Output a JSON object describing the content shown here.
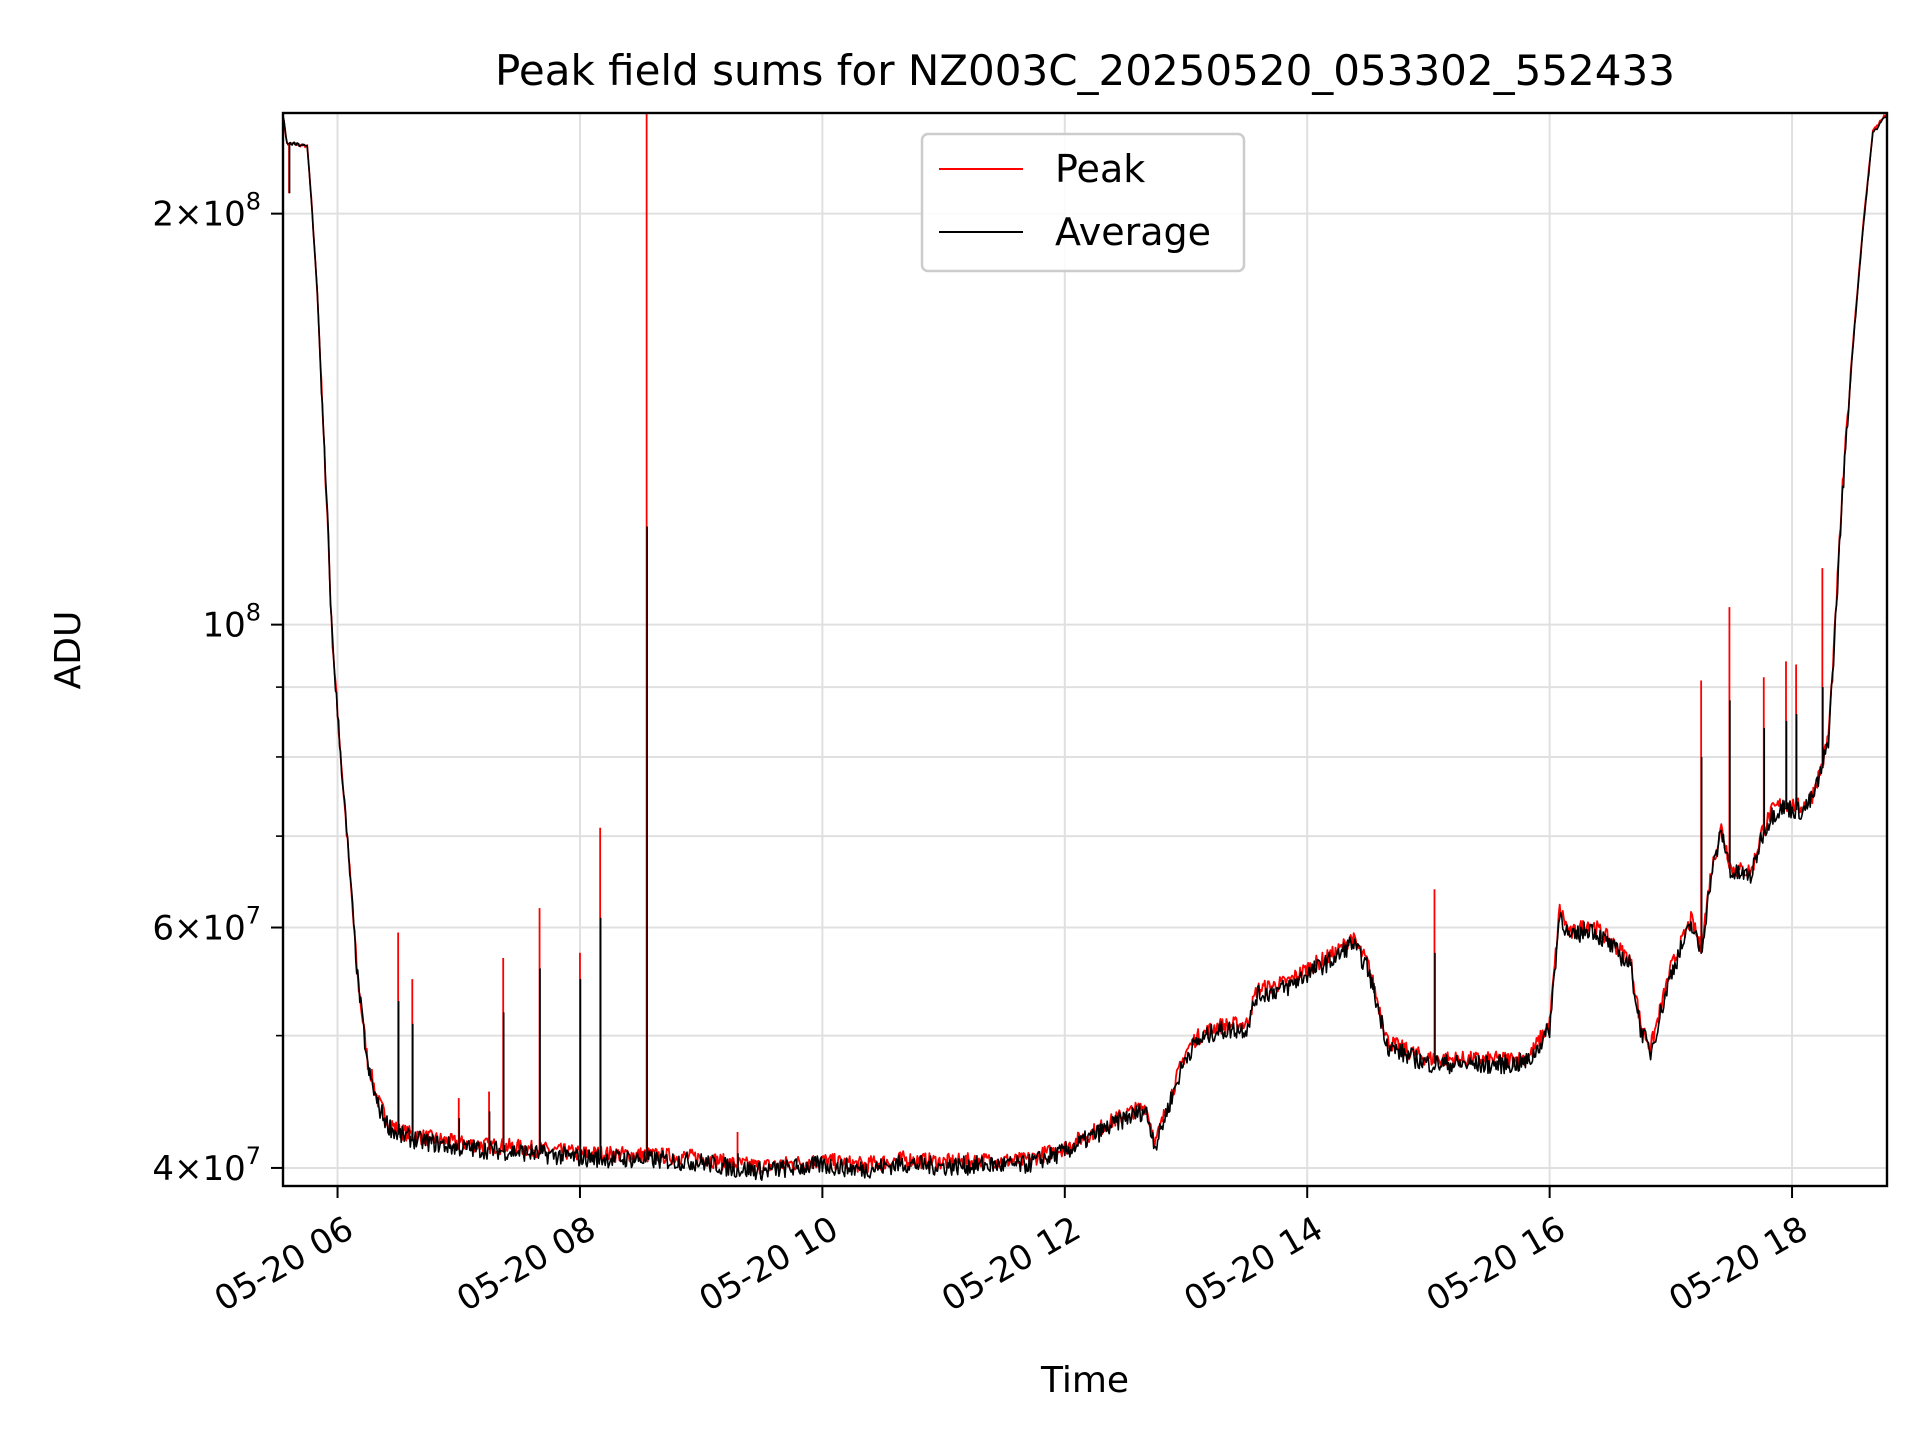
{
  "chart_data": {
    "type": "line",
    "title": "Peak field sums for NZ003C_20250520_053302_552433",
    "xlabel": "Time",
    "ylabel": "ADU",
    "xlim": [
      "2025-05-20 05:33",
      "2025-05-20 18:47"
    ],
    "ylim": [
      38800000,
      237000000
    ],
    "yscale": "log",
    "grid": true,
    "legend": "upper center",
    "x_ticks": [
      {
        "hour": 6,
        "label": "05-20 06"
      },
      {
        "hour": 8,
        "label": "05-20 08"
      },
      {
        "hour": 10,
        "label": "05-20 10"
      },
      {
        "hour": 12,
        "label": "05-20 12"
      },
      {
        "hour": 14,
        "label": "05-20 14"
      },
      {
        "hour": 16,
        "label": "05-20 16"
      },
      {
        "hour": 18,
        "label": "05-20 18"
      }
    ],
    "y_ticks": [
      {
        "value": 40000000,
        "base": "4×10",
        "exp": "7"
      },
      {
        "value": 60000000,
        "base": "6×10",
        "exp": "7"
      },
      {
        "value": 100000000,
        "base": "10",
        "exp": "8"
      },
      {
        "value": 200000000,
        "base": "2×10",
        "exp": "8"
      }
    ],
    "y_minor": [
      50000000,
      70000000,
      80000000,
      90000000
    ],
    "series": [
      {
        "name": "Peak",
        "color": "#ff0000",
        "x": [
          "05:33",
          "05:35",
          "05:36",
          "05:38",
          "05:45",
          "05:47",
          "05:50",
          "05:53",
          "05:55",
          "05:57",
          "06:00",
          "06:05",
          "06:10",
          "06:15",
          "06:20",
          "06:25",
          "06:30",
          "06:40",
          "07:00",
          "07:30",
          "08:00",
          "08:30",
          "09:00",
          "09:15",
          "09:30",
          "10:00",
          "10:20",
          "10:40",
          "11:00",
          "11:20",
          "11:40",
          "12:00",
          "12:15",
          "12:30",
          "12:40",
          "12:45",
          "12:50",
          "13:00",
          "13:05",
          "13:15",
          "13:30",
          "13:35",
          "13:50",
          "14:00",
          "14:15",
          "14:22",
          "14:30",
          "14:40",
          "14:50",
          "15:00",
          "15:30",
          "15:45",
          "15:50",
          "16:00",
          "16:05",
          "16:10",
          "16:20",
          "16:30",
          "16:40",
          "16:45",
          "16:50",
          "17:00",
          "17:10",
          "17:15",
          "17:20",
          "17:25",
          "17:30",
          "17:40",
          "17:45",
          "17:50",
          "17:55",
          "18:05",
          "18:10",
          "18:15",
          "18:18",
          "18:20",
          "18:25",
          "18:30",
          "18:35",
          "18:40",
          "18:47"
        ],
        "y": [
          236000000,
          225000000,
          225000000,
          225000000,
          224000000,
          205000000,
          175000000,
          138000000,
          120000000,
          100000000,
          86000000,
          69000000,
          55000000,
          47800000,
          44800000,
          43300000,
          42600000,
          42200000,
          41700000,
          41400000,
          41000000,
          40900000,
          40700000,
          40300000,
          40100000,
          40500000,
          40200000,
          40600000,
          40400000,
          40500000,
          40500000,
          41400000,
          42600000,
          43800000,
          44400000,
          41800000,
          44100000,
          48700000,
          49800000,
          50800000,
          51000000,
          54000000,
          54700000,
          56000000,
          57600000,
          59000000,
          56500000,
          49500000,
          48700000,
          48100000,
          48000000,
          48100000,
          48300000,
          51000000,
          62000000,
          59300000,
          60500000,
          58700000,
          56800000,
          51000000,
          49000000,
          56000000,
          60800000,
          58000000,
          66000000,
          71000000,
          66200000,
          66000000,
          70500000,
          73000000,
          74000000,
          73500000,
          75000000,
          79000000,
          83000000,
          92000000,
          126000000,
          160000000,
          195000000,
          230000000,
          237000000
        ]
      },
      {
        "name": "Average",
        "color": "#000000",
        "x": [
          "05:33",
          "05:35",
          "05:36",
          "05:38",
          "05:45",
          "05:47",
          "05:50",
          "05:53",
          "05:55",
          "05:57",
          "06:00",
          "06:05",
          "06:10",
          "06:15",
          "06:20",
          "06:25",
          "06:30",
          "06:40",
          "07:00",
          "07:30",
          "08:00",
          "08:30",
          "09:00",
          "09:15",
          "09:30",
          "10:00",
          "10:20",
          "10:40",
          "11:00",
          "11:20",
          "11:40",
          "12:00",
          "12:15",
          "12:30",
          "12:40",
          "12:45",
          "12:50",
          "13:00",
          "13:05",
          "13:15",
          "13:30",
          "13:35",
          "13:50",
          "14:00",
          "14:15",
          "14:22",
          "14:30",
          "14:40",
          "14:50",
          "15:00",
          "15:30",
          "15:45",
          "15:50",
          "16:00",
          "16:05",
          "16:10",
          "16:20",
          "16:30",
          "16:40",
          "16:45",
          "16:50",
          "17:00",
          "17:10",
          "17:15",
          "17:20",
          "17:25",
          "17:30",
          "17:40",
          "17:45",
          "17:50",
          "17:55",
          "18:05",
          "18:10",
          "18:15",
          "18:18",
          "18:20",
          "18:25",
          "18:30",
          "18:35",
          "18:40",
          "18:47"
        ],
        "y": [
          236000000,
          225000000,
          225000000,
          225000000,
          224000000,
          205000000,
          175000000,
          138000000,
          120000000,
          100000000,
          86000000,
          69000000,
          55000000,
          47300000,
          44400000,
          43000000,
          42300000,
          41900000,
          41400000,
          41100000,
          40700000,
          40600000,
          40400000,
          40000000,
          39800000,
          40200000,
          39900000,
          40300000,
          40100000,
          40200000,
          40200000,
          41100000,
          42300000,
          43500000,
          44100000,
          41500000,
          43800000,
          48300000,
          49400000,
          50400000,
          50600000,
          53500000,
          54200000,
          55500000,
          57100000,
          58500000,
          56000000,
          49100000,
          48300000,
          47700000,
          47600000,
          47700000,
          47900000,
          50600000,
          61500000,
          58800000,
          60000000,
          58200000,
          56300000,
          50600000,
          48600000,
          55500000,
          60300000,
          57500000,
          65500000,
          70500000,
          65700000,
          65500000,
          70000000,
          72500000,
          73500000,
          73000000,
          74500000,
          78500000,
          82500000,
          91500000,
          125000000,
          159000000,
          194000000,
          229000000,
          236500000
        ]
      }
    ],
    "spikes": [
      {
        "t": "05:36",
        "peak": 207000000,
        "avg": 207000000
      },
      {
        "t": "06:30",
        "peak": 59500000,
        "avg": 53000000
      },
      {
        "t": "06:37",
        "peak": 55000000,
        "avg": 51000000
      },
      {
        "t": "07:00",
        "peak": 45000000,
        "avg": 43500000
      },
      {
        "t": "07:15",
        "peak": 45500000,
        "avg": 44000000
      },
      {
        "t": "07:22",
        "peak": 57000000,
        "avg": 52000000
      },
      {
        "t": "07:40",
        "peak": 62000000,
        "avg": 56000000
      },
      {
        "t": "08:00",
        "peak": 57500000,
        "avg": 55000000
      },
      {
        "t": "08:10",
        "peak": 71000000,
        "avg": 61000000
      },
      {
        "t": "08:33",
        "peak": 237000000,
        "avg": 118000000
      },
      {
        "t": "09:18",
        "peak": 42500000,
        "avg": 41000000
      },
      {
        "t": "15:03",
        "peak": 64000000,
        "avg": 57500000
      },
      {
        "t": "17:15",
        "peak": 91000000,
        "avg": 80000000
      },
      {
        "t": "17:29",
        "peak": 103000000,
        "avg": 88000000
      },
      {
        "t": "17:46",
        "peak": 91500000,
        "avg": 84000000
      },
      {
        "t": "17:57",
        "peak": 94000000,
        "avg": 85000000
      },
      {
        "t": "18:02",
        "peak": 93500000,
        "avg": 86000000
      },
      {
        "t": "18:15",
        "peak": 110000000,
        "avg": 90000000
      }
    ]
  }
}
